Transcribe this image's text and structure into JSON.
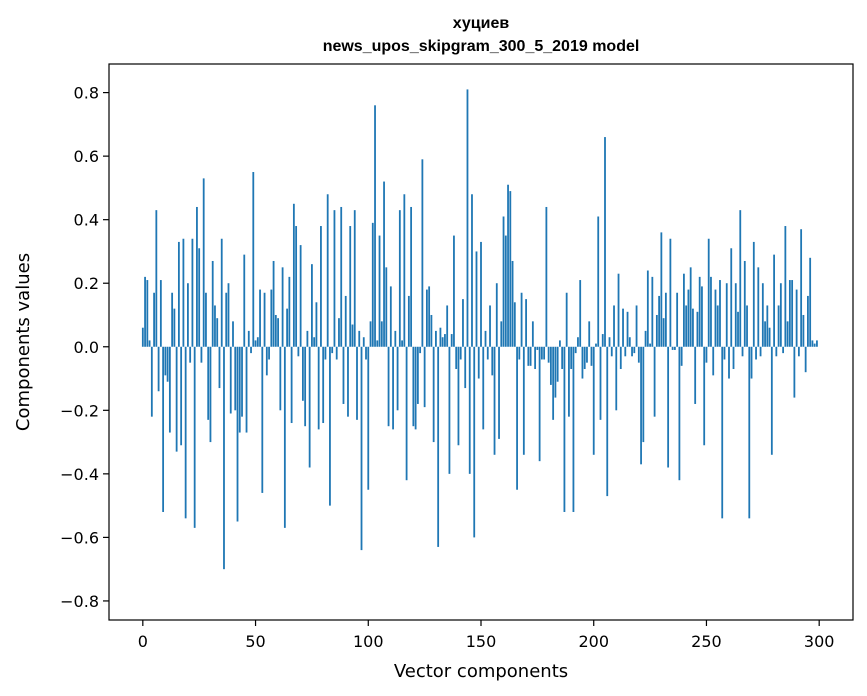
{
  "chart_data": {
    "type": "bar",
    "title": "хуциев",
    "subtitle": "news_upos_skipgram_300_5_2019 model",
    "xlabel": "Vector components",
    "ylabel": "Components values",
    "xlim": [
      -15,
      315
    ],
    "ylim": [
      -0.86,
      0.89
    ],
    "xticks": [
      0,
      50,
      100,
      150,
      200,
      250,
      300
    ],
    "yticks": [
      -0.8,
      -0.6,
      -0.4,
      -0.2,
      0.0,
      0.2,
      0.4,
      0.6,
      0.8
    ],
    "ytick_labels": [
      "−0.8",
      "−0.6",
      "−0.4",
      "−0.2",
      "0.0",
      "0.2",
      "0.4",
      "0.6",
      "0.8"
    ],
    "grid": false,
    "bar_color": "#1f77b4",
    "values": [
      0.06,
      0.22,
      0.21,
      0.02,
      -0.22,
      0.17,
      0.43,
      -0.14,
      0.21,
      -0.52,
      -0.09,
      -0.11,
      -0.27,
      0.17,
      0.12,
      -0.33,
      0.33,
      -0.31,
      0.34,
      -0.54,
      0.2,
      -0.05,
      0.34,
      -0.57,
      0.44,
      0.31,
      -0.05,
      0.53,
      0.17,
      -0.23,
      -0.3,
      0.27,
      0.13,
      0.09,
      -0.13,
      0.34,
      -0.7,
      0.17,
      0.2,
      -0.21,
      0.08,
      -0.2,
      -0.55,
      -0.27,
      -0.22,
      0.29,
      -0.27,
      0.05,
      -0.02,
      0.55,
      0.02,
      0.03,
      0.18,
      -0.46,
      0.17,
      -0.09,
      -0.04,
      0.18,
      0.27,
      0.1,
      0.09,
      -0.2,
      0.25,
      -0.57,
      0.12,
      0.22,
      -0.24,
      0.45,
      0.38,
      -0.03,
      0.32,
      -0.17,
      -0.25,
      0.05,
      -0.38,
      0.26,
      0.03,
      0.14,
      -0.26,
      0.38,
      -0.24,
      -0.04,
      0.48,
      -0.5,
      -0.02,
      0.43,
      -0.04,
      0.09,
      0.44,
      -0.18,
      0.16,
      -0.22,
      0.38,
      0.07,
      0.43,
      -0.23,
      0.05,
      -0.64,
      0.03,
      -0.04,
      -0.45,
      0.08,
      0.39,
      0.76,
      0.02,
      0.35,
      0.08,
      0.52,
      0.25,
      -0.25,
      0.19,
      -0.26,
      0.05,
      -0.2,
      0.43,
      0.02,
      0.48,
      -0.42,
      0.16,
      0.44,
      -0.25,
      -0.26,
      -0.18,
      -0.02,
      0.59,
      -0.19,
      0.18,
      0.19,
      0.1,
      -0.3,
      0.05,
      -0.63,
      0.06,
      0.03,
      0.04,
      0.13,
      -0.4,
      0.04,
      0.35,
      -0.07,
      -0.31,
      -0.04,
      0.15,
      -0.13,
      0.81,
      -0.4,
      0.48,
      -0.6,
      0.3,
      -0.1,
      0.33,
      -0.26,
      0.05,
      -0.04,
      0.13,
      -0.09,
      -0.34,
      0.2,
      -0.29,
      0.08,
      0.41,
      0.35,
      0.51,
      0.49,
      0.27,
      0.14,
      -0.45,
      -0.04,
      0.17,
      -0.34,
      0.15,
      -0.06,
      -0.06,
      0.08,
      -0.07,
      -0.01,
      -0.36,
      -0.04,
      -0.04,
      0.44,
      -0.05,
      -0.12,
      -0.23,
      -0.16,
      -0.11,
      0.02,
      -0.07,
      -0.52,
      0.17,
      -0.22,
      -0.07,
      -0.52,
      -0.02,
      0.03,
      0.21,
      -0.1,
      -0.07,
      -0.05,
      0.08,
      -0.06,
      -0.34,
      0.01,
      0.41,
      -0.23,
      0.04,
      0.66,
      -0.47,
      0.03,
      -0.03,
      0.13,
      -0.2,
      0.23,
      -0.07,
      0.12,
      -0.03,
      0.11,
      0.03,
      -0.03,
      -0.02,
      0.13,
      -0.05,
      -0.37,
      -0.3,
      0.05,
      0.24,
      0.01,
      0.22,
      -0.22,
      0.1,
      0.16,
      0.36,
      0.09,
      0.17,
      -0.38,
      0.34,
      -0.01,
      -0.01,
      0.17,
      -0.42,
      -0.06,
      0.23,
      0.13,
      0.18,
      0.25,
      0.12,
      -0.18,
      0.11,
      0.22,
      0.19,
      -0.31,
      -0.05,
      0.34,
      0.22,
      -0.09,
      0.18,
      0.13,
      0.21,
      -0.54,
      -0.04,
      0.2,
      -0.1,
      0.31,
      -0.07,
      0.2,
      0.11,
      0.43,
      -0.03,
      0.27,
      0.13,
      -0.54,
      -0.1,
      0.33,
      -0.04,
      0.25,
      -0.03,
      0.2,
      0.08,
      0.13,
      0.06,
      -0.34,
      0.29,
      -0.03,
      0.13,
      0.2,
      -0.02,
      0.38,
      0.08,
      0.21,
      0.21,
      -0.16,
      0.18,
      -0.03,
      0.37,
      0.1,
      -0.08,
      0.16,
      0.28,
      0.02,
      0.01,
      0.02
    ]
  }
}
